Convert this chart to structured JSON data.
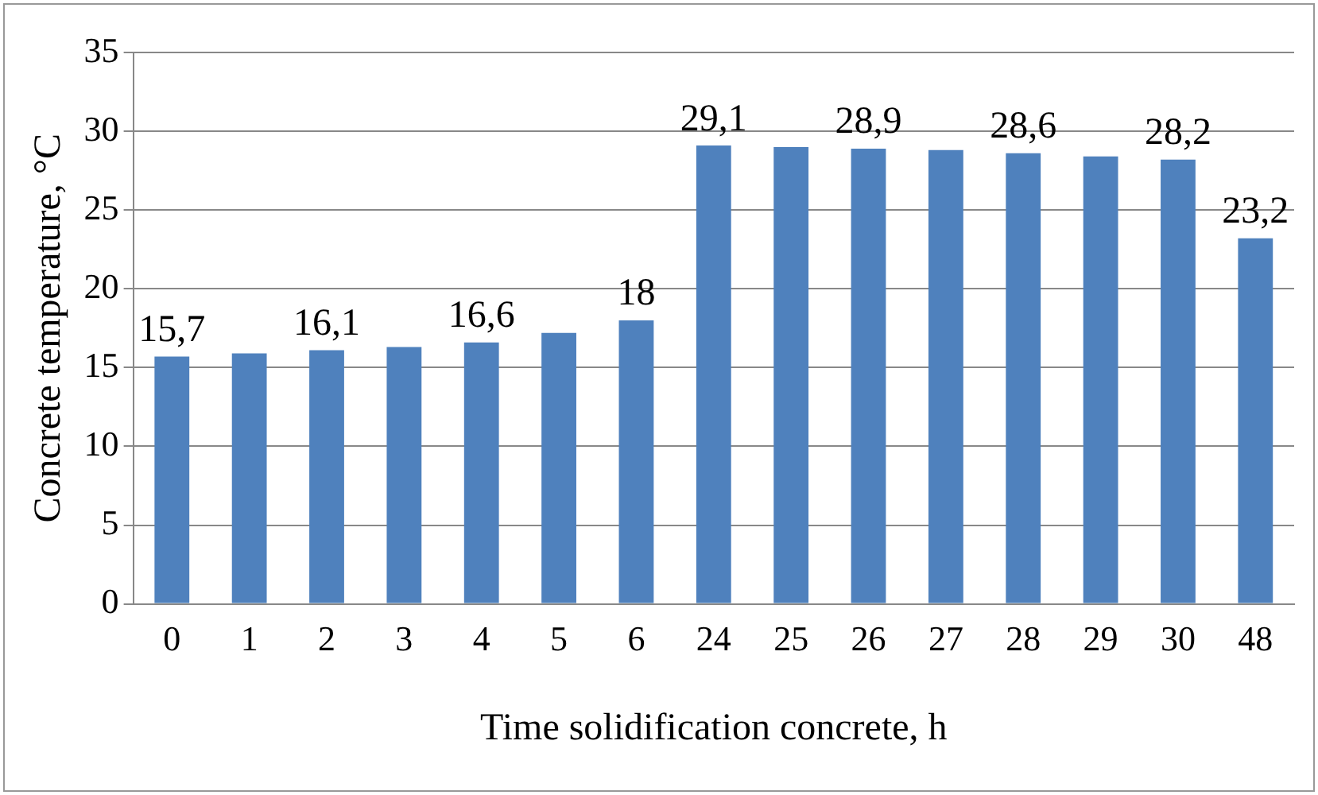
{
  "chart_data": {
    "type": "bar",
    "xlabel": "Time solidification concrete, h",
    "ylabel": "Concrete temperature, °C",
    "categories": [
      "0",
      "1",
      "2",
      "3",
      "4",
      "5",
      "6",
      "24",
      "25",
      "26",
      "27",
      "28",
      "29",
      "30",
      "48"
    ],
    "values": [
      15.7,
      15.9,
      16.1,
      16.3,
      16.6,
      17.2,
      18,
      29.1,
      29.0,
      28.9,
      28.8,
      28.6,
      28.4,
      28.2,
      23.2
    ],
    "value_labels": [
      "15,7",
      null,
      "16,1",
      null,
      "16,6",
      null,
      "18",
      "29,1",
      null,
      "28,9",
      null,
      "28,6",
      null,
      "28,2",
      "23,2"
    ],
    "color": "#4f81bd",
    "ylim": [
      0,
      35
    ],
    "yticks": [
      0,
      5,
      10,
      15,
      20,
      25,
      30,
      35
    ],
    "grid": "y",
    "legend": false
  }
}
